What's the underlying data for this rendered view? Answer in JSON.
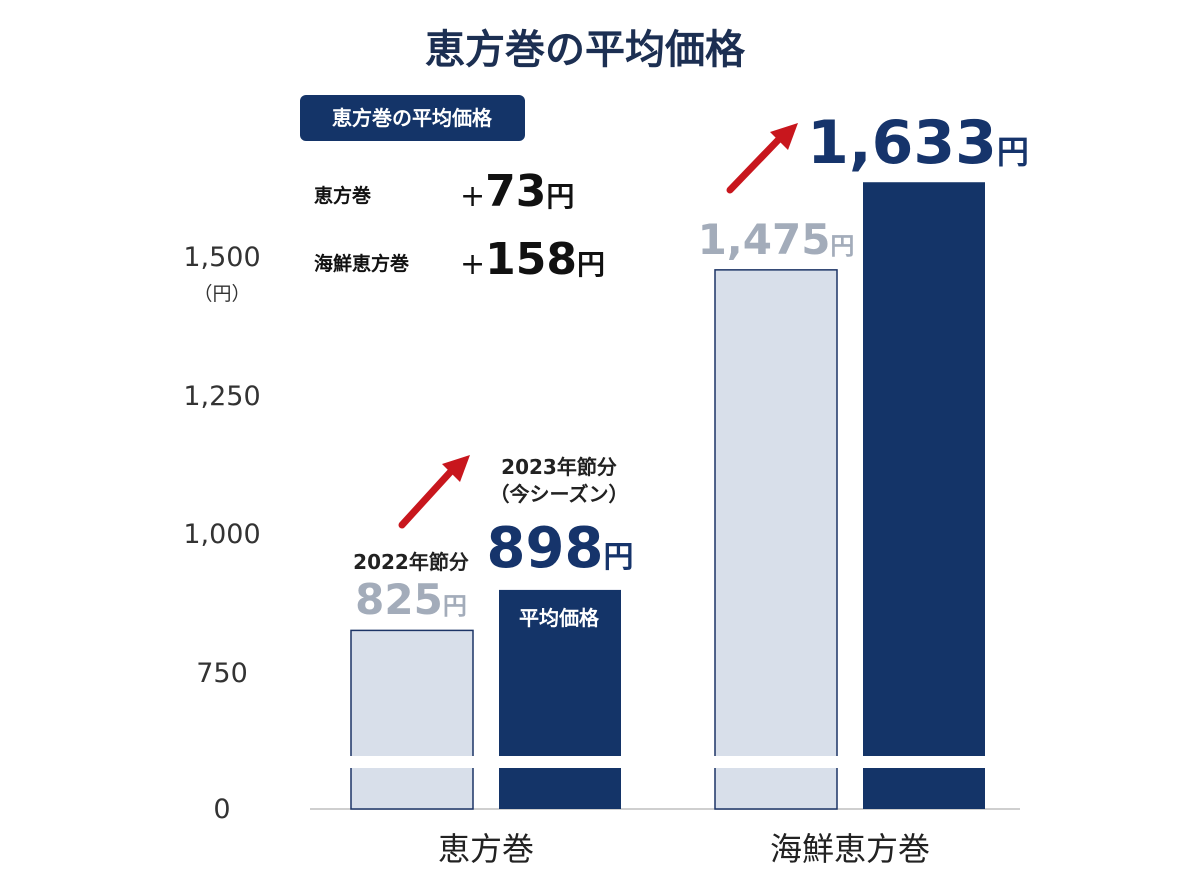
{
  "chart_data": {
    "type": "bar",
    "title": "恵方巻の平均価格",
    "categories": [
      "恵方巻",
      "海鮮恵方巻"
    ],
    "series": [
      {
        "name": "2022年節分",
        "values": [
          825,
          1475
        ]
      },
      {
        "name": "2023年節分（今シーズン）",
        "values": [
          898,
          1633
        ]
      }
    ],
    "value_labels": {
      "old": [
        "825",
        "1,475"
      ],
      "new": [
        "898",
        "1,633"
      ]
    },
    "unit": "円",
    "y_ticks": [
      "0",
      "750",
      "1,000",
      "1,250",
      "1,500"
    ],
    "y_tick_values": [
      0,
      750,
      1000,
      1250,
      1500
    ],
    "y_unit_label": "（円）",
    "ylim": [
      0,
      1650
    ],
    "axis_break": true,
    "series_labels": {
      "old_year": "2022年節分",
      "new_year": "2023年節分",
      "new_note": "（今シーズン）",
      "bar_label": "平均価格"
    },
    "increase_box": {
      "header": "恵方巻の平均価格",
      "rows": [
        {
          "label": "恵方巻",
          "sign": "+",
          "value": "73",
          "unit": "円"
        },
        {
          "label": "海鮮恵方巻",
          "sign": "+",
          "value": "158",
          "unit": "円"
        }
      ]
    },
    "colors": {
      "old_bar": "#d8dfea",
      "old_bar_border": "#1c3466",
      "new_bar": "#143468",
      "old_label": "#a3acba",
      "new_label": "#16346b",
      "arrow": "#c8161d",
      "title": "#1c2f52"
    }
  }
}
